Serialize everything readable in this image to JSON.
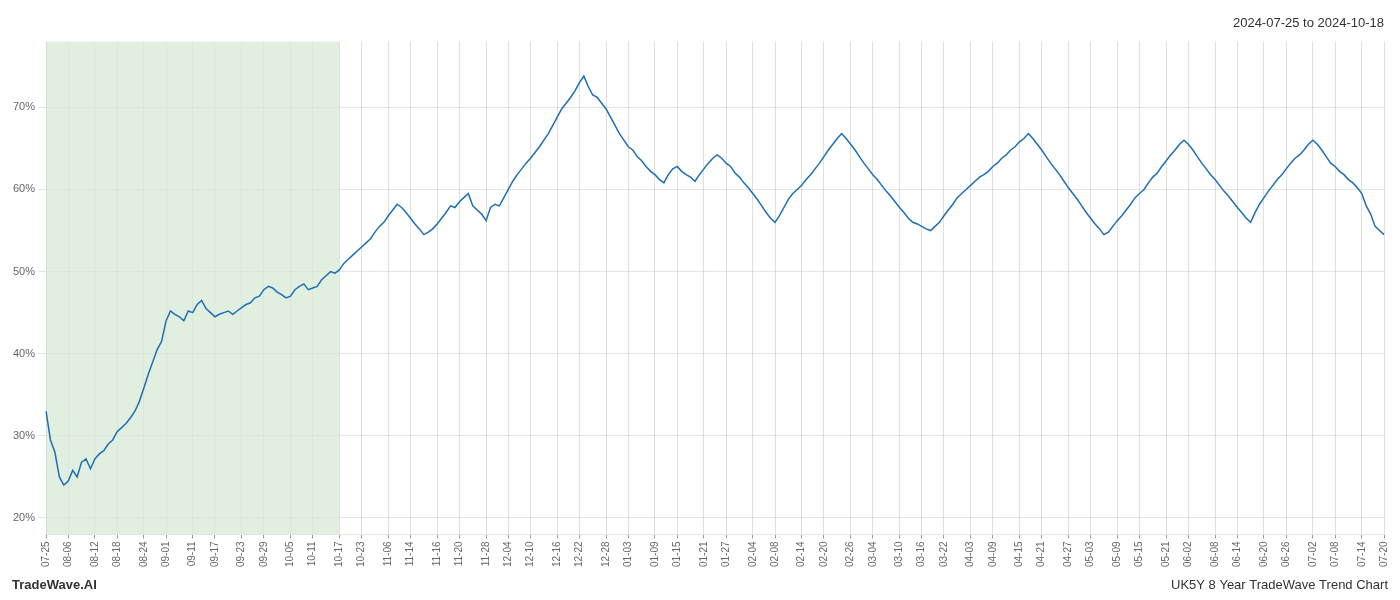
{
  "chart_data": {
    "type": "line",
    "title": "2024-07-25 to 2024-10-18",
    "annotations": [
      "TradeWave.AI",
      "UK5Y 8 Year TradeWave Trend Chart"
    ],
    "color": "#1f6eb5",
    "grid": true,
    "ylim": [
      0.18,
      0.78
    ],
    "yticks": [
      {
        "value": 0.2,
        "label": "20%"
      },
      {
        "value": 0.3,
        "label": "30%"
      },
      {
        "value": 0.4,
        "label": "40%"
      },
      {
        "value": 0.5,
        "label": "50%"
      },
      {
        "value": 0.6,
        "label": "60%"
      },
      {
        "value": 0.7,
        "label": "70%"
      }
    ],
    "highlight": {
      "from": "07-25",
      "to": "10-17",
      "color": "#d6ead6"
    },
    "categories": [
      "07-25",
      null,
      null,
      null,
      null,
      "08-06",
      null,
      null,
      null,
      null,
      null,
      "08-12",
      null,
      null,
      null,
      null,
      "08-18",
      null,
      null,
      null,
      null,
      null,
      "08-24",
      null,
      null,
      null,
      null,
      "09-01",
      null,
      null,
      null,
      null,
      null,
      "09-11",
      null,
      null,
      null,
      null,
      "09-17",
      null,
      null,
      null,
      null,
      null,
      "09-23",
      null,
      null,
      null,
      null,
      "09-29",
      null,
      null,
      null,
      null,
      null,
      "10-05",
      null,
      null,
      null,
      null,
      "10-11",
      null,
      null,
      null,
      null,
      null,
      "10-17",
      null,
      null,
      null,
      null,
      "10-23",
      null,
      null,
      null,
      null,
      null,
      "11-06",
      null,
      null,
      null,
      null,
      "11-14",
      null,
      null,
      null,
      null,
      null,
      "11-16",
      null,
      null,
      null,
      null,
      "11-20",
      null,
      null,
      null,
      null,
      null,
      "11-28",
      null,
      null,
      null,
      null,
      "12-04",
      null,
      null,
      null,
      null,
      "12-10",
      null,
      null,
      null,
      null,
      null,
      "12-16",
      null,
      null,
      null,
      null,
      "12-22",
      null,
      null,
      null,
      null,
      null,
      "12-28",
      null,
      null,
      null,
      null,
      "01-03",
      null,
      null,
      null,
      null,
      null,
      "01-09",
      null,
      null,
      null,
      null,
      "01-15",
      null,
      null,
      null,
      null,
      null,
      "01-21",
      null,
      null,
      null,
      null,
      "01-27",
      null,
      null,
      null,
      null,
      null,
      "02-04",
      null,
      null,
      null,
      null,
      "02-08",
      null,
      null,
      null,
      null,
      null,
      "02-14",
      null,
      null,
      null,
      null,
      "02-20",
      null,
      null,
      null,
      null,
      null,
      "02-26",
      null,
      null,
      null,
      null,
      "03-04",
      null,
      null,
      null,
      null,
      null,
      "03-10",
      null,
      null,
      null,
      null,
      "03-16",
      null,
      null,
      null,
      null,
      "03-22",
      null,
      null,
      null,
      null,
      null,
      "04-03",
      null,
      null,
      null,
      null,
      "04-09",
      null,
      null,
      null,
      null,
      null,
      "04-15",
      null,
      null,
      null,
      null,
      "04-21",
      null,
      null,
      null,
      null,
      null,
      "04-27",
      null,
      null,
      null,
      null,
      "05-03",
      null,
      null,
      null,
      null,
      null,
      "05-09",
      null,
      null,
      null,
      null,
      "05-15",
      null,
      null,
      null,
      null,
      null,
      "05-21",
      null,
      null,
      null,
      null,
      "06-02",
      null,
      null,
      null,
      null,
      null,
      "06-08",
      null,
      null,
      null,
      null,
      "06-14",
      null,
      null,
      null,
      null,
      null,
      "06-20",
      null,
      null,
      null,
      null,
      "06-26",
      null,
      null,
      null,
      null,
      null,
      "07-02",
      null,
      null,
      null,
      null,
      "07-08",
      null,
      null,
      null,
      null,
      null,
      "07-14",
      null,
      null,
      null,
      null,
      "07-20"
    ],
    "values": [
      0.33,
      0.295,
      0.28,
      0.25,
      0.24,
      0.245,
      0.258,
      0.25,
      0.268,
      0.272,
      0.26,
      0.272,
      0.278,
      0.282,
      0.29,
      0.295,
      0.305,
      0.31,
      0.315,
      0.322,
      0.33,
      0.342,
      0.358,
      0.375,
      0.39,
      0.405,
      0.415,
      0.44,
      0.452,
      0.448,
      0.445,
      0.44,
      0.452,
      0.45,
      0.46,
      0.465,
      0.455,
      0.45,
      0.445,
      0.448,
      0.45,
      0.452,
      0.448,
      0.452,
      0.456,
      0.46,
      0.462,
      0.468,
      0.47,
      0.478,
      0.482,
      0.48,
      0.475,
      0.472,
      0.468,
      0.47,
      0.478,
      0.482,
      0.485,
      0.478,
      0.48,
      0.482,
      0.49,
      0.495,
      0.5,
      0.498,
      0.502,
      0.51,
      0.515,
      0.52,
      0.525,
      0.53,
      0.535,
      0.54,
      0.548,
      0.555,
      0.56,
      0.568,
      0.575,
      0.582,
      0.578,
      0.572,
      0.565,
      0.558,
      0.552,
      0.545,
      0.548,
      0.552,
      0.558,
      0.565,
      0.572,
      0.58,
      0.578,
      0.585,
      0.59,
      0.595,
      0.58,
      0.575,
      0.57,
      0.562,
      0.578,
      0.582,
      0.58,
      0.59,
      0.6,
      0.61,
      0.618,
      0.625,
      0.632,
      0.638,
      0.645,
      0.652,
      0.66,
      0.668,
      0.678,
      0.688,
      0.698,
      0.705,
      0.712,
      0.72,
      0.73,
      0.738,
      0.725,
      0.715,
      0.712,
      0.705,
      0.698,
      0.688,
      0.678,
      0.668,
      0.66,
      0.652,
      0.648,
      0.64,
      0.635,
      0.628,
      0.622,
      0.618,
      0.612,
      0.608,
      0.618,
      0.625,
      0.628,
      0.622,
      0.618,
      0.615,
      0.61,
      0.618,
      0.625,
      0.632,
      0.638,
      0.642,
      0.638,
      0.632,
      0.628,
      0.62,
      0.615,
      0.608,
      0.602,
      0.595,
      0.588,
      0.58,
      0.572,
      0.565,
      0.56,
      0.568,
      0.578,
      0.588,
      0.595,
      0.6,
      0.605,
      0.612,
      0.618,
      0.625,
      0.632,
      0.64,
      0.648,
      0.655,
      0.662,
      0.668,
      0.662,
      0.655,
      0.648,
      0.64,
      0.632,
      0.625,
      0.618,
      0.612,
      0.605,
      0.598,
      0.592,
      0.585,
      0.578,
      0.572,
      0.565,
      0.56,
      0.558,
      0.555,
      0.552,
      0.55,
      0.555,
      0.56,
      0.568,
      0.575,
      0.582,
      0.59,
      0.595,
      0.6,
      0.605,
      0.61,
      0.615,
      0.618,
      0.622,
      0.628,
      0.632,
      0.638,
      0.642,
      0.648,
      0.652,
      0.658,
      0.662,
      0.668,
      0.662,
      0.655,
      0.648,
      0.64,
      0.632,
      0.625,
      0.618,
      0.61,
      0.602,
      0.595,
      0.588,
      0.58,
      0.572,
      0.565,
      0.558,
      0.552,
      0.545,
      0.548,
      0.555,
      0.562,
      0.568,
      0.575,
      0.582,
      0.59,
      0.595,
      0.6,
      0.608,
      0.615,
      0.62,
      0.628,
      0.635,
      0.642,
      0.648,
      0.655,
      0.66,
      0.655,
      0.648,
      0.64,
      0.632,
      0.625,
      0.618,
      0.612,
      0.605,
      0.598,
      0.592,
      0.585,
      0.578,
      0.572,
      0.565,
      0.56,
      0.572,
      0.582,
      0.59,
      0.598,
      0.605,
      0.612,
      0.618,
      0.625,
      0.632,
      0.638,
      0.642,
      0.648,
      0.655,
      0.66,
      0.655,
      0.648,
      0.64,
      0.632,
      0.628,
      0.622,
      0.618,
      0.612,
      0.608,
      0.602,
      0.595,
      0.58,
      0.57,
      0.555,
      0.55,
      0.545
    ]
  }
}
